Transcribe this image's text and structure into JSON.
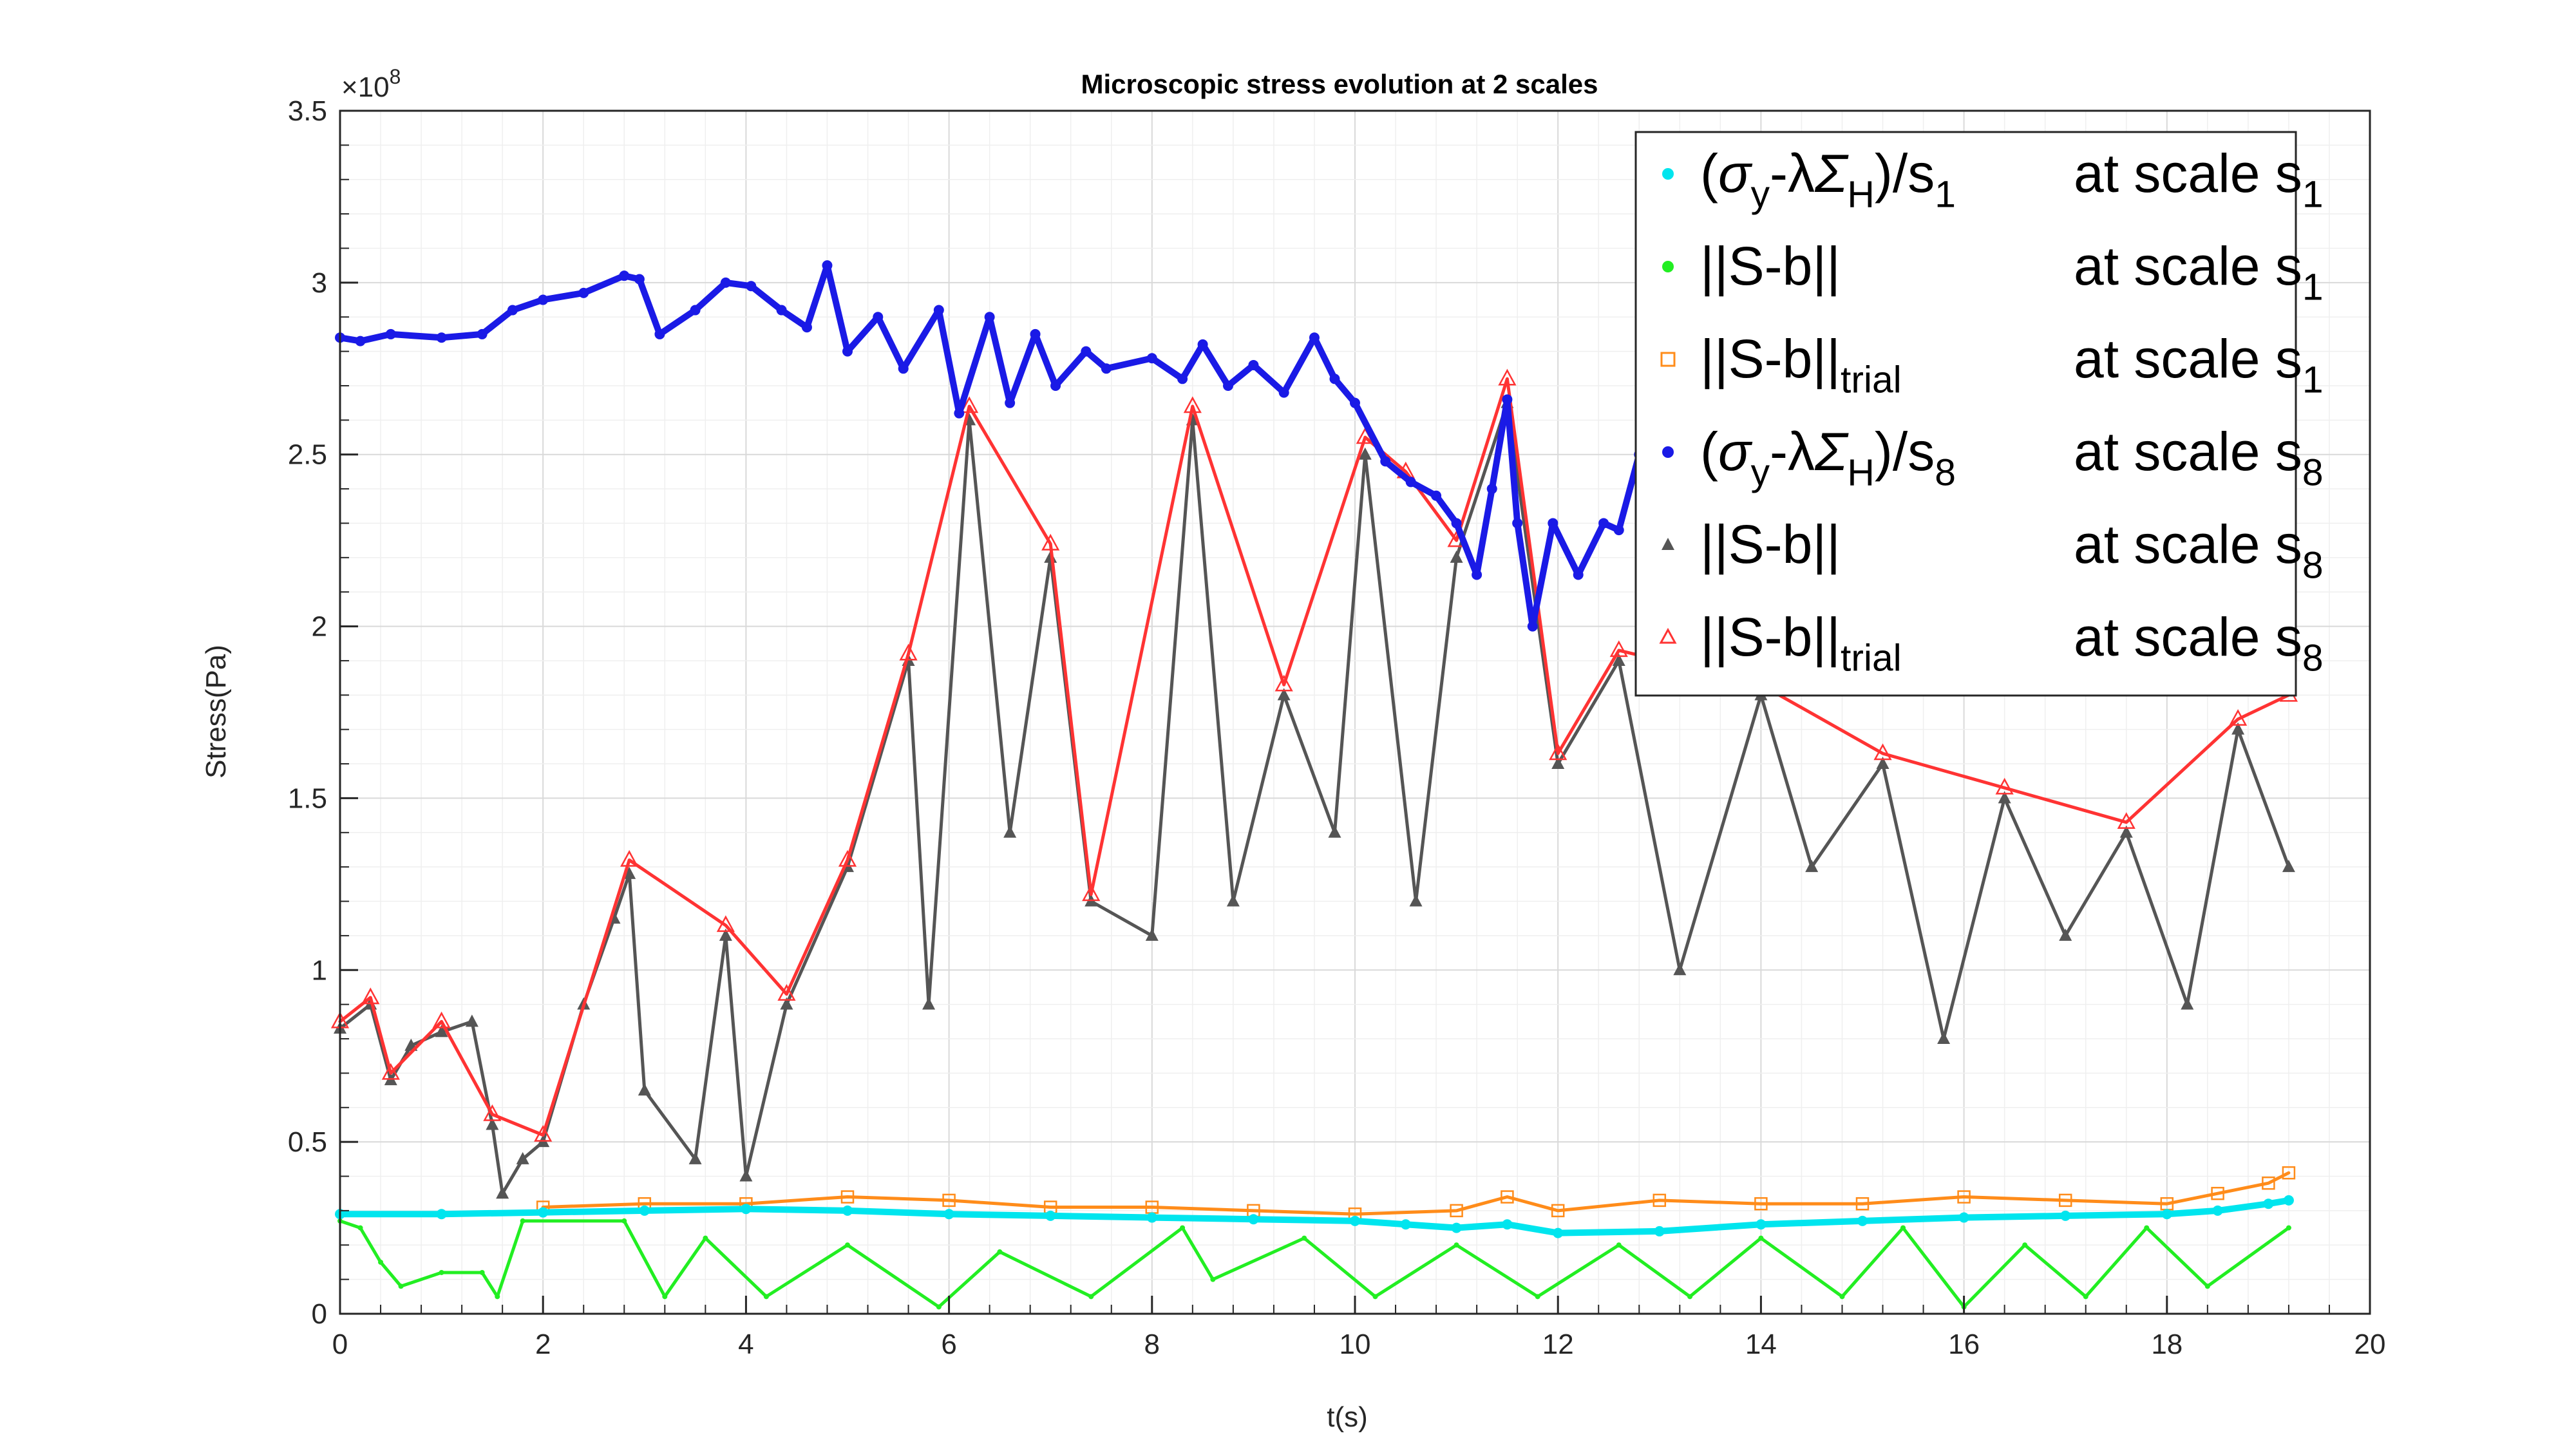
{
  "chart_data": {
    "type": "scatter",
    "title": "Microscopic stress evolution at 2 scales",
    "xlabel": "t(s)",
    "ylabel": "Stress(Pa)",
    "y_exponent_label": "×10",
    "y_exponent_power": "8",
    "xlim": [
      0,
      20
    ],
    "ylim": [
      0,
      3.5
    ],
    "y_scale_factor": 100000000,
    "grid": "major+minor",
    "legend_position": "top-right",
    "x_ticks": [
      "0",
      "2",
      "4",
      "6",
      "8",
      "10",
      "12",
      "14",
      "16",
      "18",
      "20"
    ],
    "y_ticks": [
      "0",
      "0.5",
      "1",
      "1.5",
      "2",
      "2.5",
      "3",
      "3.5"
    ],
    "legend": [
      {
        "main": "(σy-λΣH)/s1",
        "suffix": "at scale s1"
      },
      {
        "main": "||S-b||",
        "suffix": "at scale s1"
      },
      {
        "main": "||S-b||trial",
        "suffix": "at scale s1"
      },
      {
        "main": "(σy-λΣH)/s8",
        "suffix": "at scale s8"
      },
      {
        "main": "||S-b||",
        "suffix": "at scale s8"
      },
      {
        "main": "||S-b||trial",
        "suffix": "at scale s8"
      }
    ],
    "series": [
      {
        "name": "(σy-λΣH)/s1 at scale s1",
        "color": "#00e5ee",
        "marker": "dot",
        "x": [
          0,
          1,
          2,
          3,
          4,
          5,
          6,
          7,
          8,
          9,
          10,
          10.5,
          11,
          11.5,
          12,
          13,
          14,
          15,
          16,
          17,
          18,
          18.5,
          19,
          19.2
        ],
        "y": [
          0.29,
          0.29,
          0.295,
          0.3,
          0.305,
          0.3,
          0.29,
          0.285,
          0.28,
          0.275,
          0.27,
          0.26,
          0.25,
          0.26,
          0.235,
          0.24,
          0.26,
          0.27,
          0.28,
          0.285,
          0.29,
          0.3,
          0.32,
          0.33
        ]
      },
      {
        "name": "||S-b|| at scale s1",
        "color": "#22ee22",
        "marker": "dot",
        "x": [
          0,
          0.2,
          0.4,
          0.6,
          1.0,
          1.4,
          1.55,
          1.8,
          2.8,
          3.2,
          3.6,
          4.2,
          5.0,
          5.9,
          6.5,
          7.4,
          8.3,
          8.6,
          9.5,
          10.2,
          11.0,
          11.8,
          12.6,
          13.3,
          14.0,
          14.8,
          15.4,
          16.0,
          16.6,
          17.2,
          17.8,
          18.4,
          19.2
        ],
        "y": [
          0.27,
          0.25,
          0.15,
          0.08,
          0.12,
          0.12,
          0.05,
          0.27,
          0.27,
          0.05,
          0.22,
          0.05,
          0.2,
          0.02,
          0.18,
          0.05,
          0.25,
          0.1,
          0.22,
          0.05,
          0.2,
          0.05,
          0.2,
          0.05,
          0.22,
          0.05,
          0.25,
          0.02,
          0.2,
          0.05,
          0.25,
          0.08,
          0.25
        ]
      },
      {
        "name": "||S-b||trial at scale s1",
        "color": "#ff8c1a",
        "marker": "square",
        "x": [
          2.0,
          3.0,
          4.0,
          5.0,
          6.0,
          7.0,
          8.0,
          9.0,
          10.0,
          11.0,
          11.5,
          12.0,
          13.0,
          14.0,
          15.0,
          16.0,
          17.0,
          18.0,
          18.5,
          19.0,
          19.2
        ],
        "y": [
          0.31,
          0.32,
          0.32,
          0.34,
          0.33,
          0.31,
          0.31,
          0.3,
          0.29,
          0.3,
          0.34,
          0.3,
          0.33,
          0.32,
          0.32,
          0.34,
          0.33,
          0.32,
          0.35,
          0.38,
          0.41
        ]
      },
      {
        "name": "(σy-λΣH)/s8 at scale s8",
        "color": "#1a1ae6",
        "marker": "dot",
        "x": [
          0,
          0.2,
          0.5,
          1.0,
          1.4,
          1.7,
          2.0,
          2.4,
          2.8,
          2.95,
          3.15,
          3.5,
          3.8,
          4.05,
          4.35,
          4.6,
          4.8,
          5.0,
          5.3,
          5.55,
          5.9,
          6.1,
          6.4,
          6.6,
          6.85,
          7.05,
          7.35,
          7.55,
          8.0,
          8.3,
          8.5,
          8.75,
          9.0,
          9.3,
          9.6,
          9.8,
          10.0,
          10.3,
          10.55,
          10.8,
          11.0,
          11.2,
          11.35,
          11.5,
          11.6,
          11.75,
          11.95,
          12.2,
          12.45,
          12.6,
          12.8
        ],
        "y": [
          2.84,
          2.83,
          2.85,
          2.84,
          2.85,
          2.92,
          2.95,
          2.97,
          3.02,
          3.01,
          2.85,
          2.92,
          3.0,
          2.99,
          2.92,
          2.87,
          3.05,
          2.8,
          2.9,
          2.75,
          2.92,
          2.62,
          2.9,
          2.65,
          2.85,
          2.7,
          2.8,
          2.75,
          2.78,
          2.72,
          2.82,
          2.7,
          2.76,
          2.68,
          2.84,
          2.72,
          2.65,
          2.48,
          2.42,
          2.38,
          2.3,
          2.15,
          2.4,
          2.66,
          2.3,
          2.0,
          2.3,
          2.15,
          2.3,
          2.28,
          2.5
        ]
      },
      {
        "name": "||S-b|| at scale s8",
        "color": "#555555",
        "marker": "triangle-filled",
        "x": [
          0,
          0.3,
          0.5,
          0.7,
          1.0,
          1.3,
          1.5,
          1.6,
          1.8,
          2.0,
          2.4,
          2.7,
          2.85,
          3.0,
          3.5,
          3.8,
          4.0,
          4.4,
          5.0,
          5.6,
          5.8,
          6.2,
          6.6,
          7.0,
          7.4,
          8.0,
          8.4,
          8.8,
          9.3,
          9.8,
          10.1,
          10.6,
          11.0,
          11.5,
          12.0,
          12.6,
          13.2,
          14.0,
          14.5,
          15.2,
          15.8,
          16.4,
          17.0,
          17.6,
          18.2,
          18.7,
          19.2
        ],
        "y": [
          0.83,
          0.9,
          0.68,
          0.78,
          0.82,
          0.85,
          0.55,
          0.35,
          0.45,
          0.5,
          0.9,
          1.15,
          1.28,
          0.65,
          0.45,
          1.1,
          0.4,
          0.9,
          1.3,
          1.9,
          0.9,
          2.6,
          1.4,
          2.2,
          1.2,
          1.1,
          2.6,
          1.2,
          1.8,
          1.4,
          2.5,
          1.2,
          2.2,
          2.65,
          1.6,
          1.9,
          1.0,
          1.8,
          1.3,
          1.6,
          0.8,
          1.5,
          1.1,
          1.4,
          0.9,
          1.7,
          1.3
        ]
      },
      {
        "name": "||S-b||trial at scale s8",
        "color": "#ff3333",
        "marker": "triangle-open",
        "x": [
          0,
          0.3,
          0.5,
          1.0,
          1.5,
          2.0,
          2.85,
          3.8,
          4.4,
          5.0,
          5.6,
          6.2,
          7.0,
          7.4,
          8.4,
          9.3,
          10.1,
          10.5,
          11.0,
          11.5,
          12.0,
          12.6,
          14.0,
          15.2,
          16.4,
          17.6,
          18.7,
          19.2
        ],
        "y": [
          0.85,
          0.92,
          0.7,
          0.85,
          0.58,
          0.52,
          1.32,
          1.13,
          0.93,
          1.32,
          1.92,
          2.64,
          2.24,
          1.22,
          2.64,
          1.83,
          2.55,
          2.45,
          2.25,
          2.72,
          1.63,
          1.93,
          1.83,
          1.63,
          1.53,
          1.43,
          1.73,
          1.8
        ]
      }
    ]
  }
}
